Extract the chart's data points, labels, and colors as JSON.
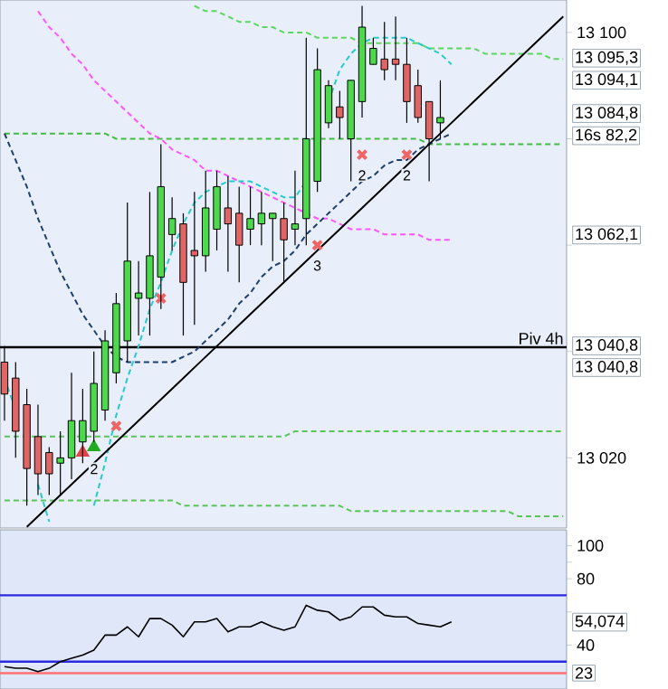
{
  "chart_data": [
    {
      "type": "candlestick",
      "categories": [
        null,
        null,
        null,
        null,
        null,
        null,
        null,
        null,
        null,
        null,
        null,
        null,
        null,
        null,
        null,
        null,
        null,
        null,
        null,
        null,
        null,
        null,
        null,
        null,
        null,
        null,
        null,
        null,
        null,
        null,
        null,
        null,
        null,
        null,
        null,
        null,
        null,
        null,
        null,
        null,
        null,
        null,
        null,
        null,
        null,
        null,
        null,
        null,
        null,
        null,
        null
      ],
      "ohlc": [
        [
          13038,
          13041,
          13027,
          13032
        ],
        [
          13035,
          13038,
          13020,
          13025
        ],
        [
          13030,
          13033,
          13011,
          13018
        ],
        [
          13024,
          13030,
          13013,
          13017
        ],
        [
          13021,
          13022,
          13013,
          13017
        ],
        [
          13019,
          13025,
          13013,
          13020
        ],
        [
          13020,
          13036,
          13016,
          13027
        ],
        [
          13023,
          13033,
          13019,
          13027
        ],
        [
          13025,
          13040,
          13023,
          13034
        ],
        [
          13029,
          13044,
          13027,
          13042
        ],
        [
          13036,
          13051,
          13034,
          13049
        ],
        [
          13042,
          13068,
          13038,
          13057
        ],
        [
          13050,
          13057,
          13043,
          13051
        ],
        [
          13050,
          13070,
          13043,
          13058
        ],
        [
          13054,
          13079,
          13048,
          13071
        ],
        [
          13062,
          13069,
          13059,
          13065
        ],
        [
          13064,
          13066,
          13043,
          13053
        ],
        [
          13059,
          13070,
          13045,
          13058
        ],
        [
          13058,
          13074,
          13055,
          13067
        ],
        [
          13063,
          13074,
          13059,
          13071
        ],
        [
          13067,
          13073,
          13055,
          13064
        ],
        [
          13066,
          13071,
          13053,
          13060
        ],
        [
          13063,
          13071,
          13060,
          13065
        ],
        [
          13064,
          13070,
          13060,
          13066
        ],
        [
          13065,
          13066,
          13057,
          13066
        ],
        [
          13065,
          13068,
          13053,
          13061
        ],
        [
          13063,
          13074,
          13060,
          13064
        ],
        [
          13065,
          13099,
          13060,
          13080
        ],
        [
          13072,
          13097,
          13070,
          13093
        ],
        [
          13083,
          13091,
          13082,
          13090
        ],
        [
          13086,
          13089,
          13080,
          13084
        ],
        [
          13080,
          13091,
          13072,
          13091
        ],
        [
          13087,
          13105,
          13084,
          13101
        ],
        [
          13094,
          13099,
          13094,
          13097
        ],
        [
          13095,
          13102,
          13091,
          13093
        ],
        [
          13095,
          13103,
          13091,
          13094
        ],
        [
          13094,
          13099,
          13083,
          13087
        ],
        [
          13090,
          13093,
          13083,
          13084
        ],
        [
          13087,
          13087,
          13072,
          13080
        ],
        [
          13083,
          13091,
          13080,
          13084
        ],
        null,
        null,
        null,
        null,
        null,
        null,
        null,
        null,
        null,
        null,
        null
      ],
      "colors": [
        "#e06666",
        "#e06666",
        "#e06666",
        "#e06666",
        "#e06666",
        "#4cd94c",
        "#4cd94c",
        "#4cd94c",
        "#4cd94c",
        "#4cd94c",
        "#4cd94c",
        "#4cd94c",
        "#4cd94c",
        "#4cd94c",
        "#4cd94c",
        "#4cd94c",
        "#e06666",
        "#e06666",
        "#4cd94c",
        "#4cd94c",
        "#e06666",
        "#e06666",
        "#4cd94c",
        "#4cd94c",
        "#4cd94c",
        "#e06666",
        "#4cd94c",
        "#4cd94c",
        "#4cd94c",
        "#4cd94c",
        "#e06666",
        "#4cd94c",
        "#4cd94c",
        "#4cd94c",
        "#e06666",
        "#e06666",
        "#e06666",
        "#e06666",
        "#e06666",
        "#4cd94c",
        null,
        null,
        null,
        null,
        null,
        null,
        null,
        null,
        null,
        null,
        null
      ],
      "series": [
        {
          "type": "line",
          "color": "#5cd65c",
          "line_style": "dashed",
          "values": [
            null,
            null,
            null,
            null,
            null,
            null,
            null,
            null,
            null,
            null,
            null,
            null,
            null,
            null,
            null,
            null,
            null,
            13105,
            13104,
            13104,
            13103,
            13102,
            13102,
            13101,
            13101,
            13100,
            13100,
            13100,
            13099,
            13099,
            13099,
            13099,
            13098,
            13098,
            13098,
            13098,
            13098,
            13098,
            13097,
            13097,
            13097,
            13097,
            13097,
            13096,
            13096,
            13096,
            13096,
            13096,
            13096,
            13095,
            13095
          ]
        },
        {
          "type": "line",
          "color": "#44bb44",
          "line_style": "dashed",
          "values": [
            13081,
            13081,
            13081,
            13081,
            13081,
            13081,
            13081,
            13081,
            13081,
            13081,
            13080,
            13080,
            13080,
            13080,
            13080,
            13080,
            13080,
            13080,
            13080,
            13080,
            13080,
            13080,
            13080,
            13080,
            13080,
            13080,
            13080,
            13080,
            13080,
            13080,
            13080,
            13080,
            13080,
            13080,
            13080,
            13080,
            13080,
            13080,
            13079,
            13079,
            13079,
            13079,
            13079,
            13079,
            13079,
            13079,
            13079,
            13079,
            13079,
            13079,
            13079
          ]
        },
        {
          "type": "line",
          "color": "#5cc45c",
          "line_style": "dashed",
          "values": [
            13024,
            13024,
            13024,
            13024,
            13024,
            13024,
            13024,
            13024,
            13024,
            13024,
            13024,
            13024,
            13024,
            13024,
            13024,
            13024,
            13024,
            13024,
            13024,
            13024,
            13024,
            13024,
            13024,
            13024,
            13024,
            13024,
            13025,
            13025,
            13025,
            13025,
            13025,
            13025,
            13025,
            13025,
            13025,
            13025,
            13025,
            13025,
            13025,
            13025,
            13025,
            13025,
            13025,
            13025,
            13025,
            13025,
            13025,
            13025,
            13025,
            13025,
            13025
          ]
        },
        {
          "type": "line",
          "color": "#5cc45c",
          "line_style": "dashed",
          "values": [
            13012,
            13012,
            13012,
            13012,
            13012,
            13012,
            13012,
            13012,
            13012,
            13012,
            13012,
            13012,
            13012,
            13012,
            13012,
            13012,
            13011,
            13011,
            13011,
            13011,
            13011,
            13011,
            13011,
            13011,
            13011,
            13011,
            13011,
            13011,
            13011,
            13011,
            13011,
            13010,
            13010,
            13010,
            13010,
            13010,
            13010,
            13010,
            13010,
            13010,
            13010,
            13010,
            13010,
            13010,
            13010,
            13010,
            13009,
            13009,
            13009,
            13009,
            13009
          ]
        },
        {
          "type": "line",
          "color": "#ff55ff",
          "line_style": "dashed",
          "values": [
            null,
            null,
            null,
            13104,
            13101,
            13099,
            13096,
            13094,
            13091,
            13089,
            13087,
            13085,
            13083,
            13081,
            13080,
            13078,
            13077,
            13076,
            13074,
            13074,
            13073,
            13072,
            13071,
            13070,
            13069,
            13068,
            13067,
            13066,
            13065,
            13065,
            13064,
            13063,
            13063,
            13063,
            13062,
            13062,
            13062,
            13062,
            13061,
            13061,
            13061,
            null,
            null,
            null,
            null,
            null,
            null,
            null,
            null,
            null,
            null
          ]
        },
        {
          "type": "line",
          "color": "#1e3f6b",
          "line_style": "dashed",
          "values": [
            13081,
            13076,
            13071,
            13065,
            13060,
            13055,
            13051,
            13047,
            13044,
            13041,
            13039,
            13038,
            13038,
            13038,
            13038,
            13038,
            13039,
            13040,
            13042,
            13044,
            13046,
            13049,
            13051,
            13054,
            13056,
            13057,
            13059,
            13062,
            13064,
            13066,
            13068,
            13070,
            13072,
            13073,
            13075,
            13076,
            13076,
            13078,
            13079,
            13080,
            13081,
            null,
            null,
            null,
            null,
            null,
            null,
            null,
            null,
            null,
            null
          ]
        },
        {
          "type": "line",
          "color": "#22cccc",
          "line_style": "dashed",
          "values": [
            13035,
            13029,
            null,
            13015,
            13008,
            null,
            null,
            null,
            13011,
            13019,
            13028,
            13035,
            13041,
            13048,
            13053,
            13059,
            13064,
            13068,
            13070,
            13071,
            13072,
            13072,
            13072,
            13071,
            13070,
            13069,
            13069,
            13072,
            null,
            13087,
            13093,
            13096,
            13098,
            13099,
            13099,
            13099,
            13099,
            13098,
            13097,
            13096,
            13094,
            null,
            null,
            null,
            null,
            null,
            null,
            null,
            null,
            null,
            null
          ]
        },
        {
          "type": "line",
          "color": "#000000",
          "line_style": "solid",
          "values": [
            null,
            null,
            13007,
            13009,
            13011,
            13013,
            13015,
            13017,
            13019,
            13021,
            13023,
            13025,
            13027,
            13029,
            13031,
            13033,
            13035,
            13037,
            13039,
            13041,
            13043,
            13045,
            13047,
            13049,
            13051,
            13053,
            13055,
            13057,
            13059,
            13061,
            13063,
            13065,
            13067,
            13069,
            13071,
            13073,
            13075,
            13077,
            13079,
            13081,
            13083,
            13085,
            13087,
            13089,
            13091,
            13093,
            13095,
            13097,
            13099,
            13101,
            13103
          ]
        },
        {
          "type": "scatter",
          "color": "#f06464",
          "marker": "cross",
          "values": [
            null,
            null,
            null,
            null,
            null,
            null,
            null,
            null,
            null,
            null,
            13026,
            null,
            null,
            null,
            13050,
            null,
            null,
            null,
            null,
            null,
            null,
            null,
            null,
            null,
            null,
            null,
            null,
            null,
            13060,
            null,
            null,
            null,
            13077,
            null,
            null,
            null,
            13077,
            null,
            null,
            null,
            null,
            null,
            null,
            null,
            null,
            null,
            null,
            null,
            null,
            null,
            null
          ]
        },
        {
          "type": "scatter",
          "color": "#e04444",
          "marker": "triangle",
          "values": [
            null,
            null,
            null,
            null,
            null,
            null,
            null,
            13021,
            null,
            null,
            null,
            null,
            null,
            null,
            null,
            null,
            null,
            null,
            null,
            null,
            null,
            null,
            null,
            null,
            null,
            null,
            null,
            null,
            null,
            null,
            null,
            null,
            null,
            null,
            null,
            null,
            null,
            null,
            null,
            null,
            null,
            null,
            null,
            null,
            null,
            null,
            null,
            null,
            null,
            null,
            null
          ]
        },
        {
          "type": "scatter",
          "color": "#22aa22",
          "marker": "triangle",
          "values": [
            null,
            null,
            null,
            null,
            null,
            null,
            null,
            null,
            13022,
            null,
            null,
            null,
            null,
            null,
            null,
            null,
            null,
            null,
            null,
            null,
            null,
            null,
            null,
            null,
            null,
            null,
            null,
            null,
            null,
            null,
            null,
            null,
            null,
            null,
            null,
            null,
            null,
            null,
            null,
            null,
            null,
            null,
            null,
            null,
            null,
            null,
            null,
            null,
            null,
            null,
            null
          ]
        }
      ],
      "ylim": [
        13006.8,
        13106.1
      ],
      "yticks": [
        {
          "value": 13100,
          "label": "13 100"
        },
        {
          "value": 13080,
          "label": null
        },
        {
          "value": 13060,
          "label": null
        },
        {
          "value": 13040,
          "label": null
        },
        {
          "value": 13020,
          "label": "13 020"
        }
      ],
      "ref_lines": [
        {
          "axis": "y",
          "value": 13040.8,
          "label": "Piv 4h",
          "color": "#000000",
          "line_style": "solid"
        }
      ],
      "annotations": [
        "13 095,3",
        "13 094,1",
        "13 084,8",
        "16s 82,2",
        "13 062,1",
        "13 040,8",
        "13 040,8",
        "3",
        "2",
        "2",
        "2"
      ],
      "tick_labels": "y"
    },
    {
      "type": "line",
      "categories": [
        null,
        null,
        null,
        null,
        null,
        null,
        null,
        null,
        null,
        null,
        null,
        null,
        null,
        null,
        null,
        null,
        null,
        null,
        null,
        null,
        null,
        null,
        null,
        null,
        null,
        null,
        null,
        null,
        null,
        null,
        null,
        null,
        null,
        null,
        null,
        null,
        null,
        null,
        null,
        null,
        null,
        null,
        null,
        null,
        null,
        null,
        null,
        null,
        null,
        null,
        null
      ],
      "series": [
        {
          "color": "#000000",
          "line_style": "solid",
          "values": [
            27,
            26,
            26,
            24,
            26,
            30,
            32,
            34,
            37,
            46,
            46,
            51,
            45,
            56,
            56,
            52,
            45,
            54,
            54,
            56,
            48,
            51,
            51,
            54,
            51,
            49,
            51,
            64,
            61,
            60,
            55,
            57,
            63,
            63,
            58,
            57,
            57,
            53,
            52,
            51,
            54,
            null,
            null,
            null,
            null,
            null,
            null,
            null,
            null,
            null,
            null
          ]
        }
      ],
      "ylim": [
        13.5,
        109.5
      ],
      "yticks": [
        100,
        {
          "value": 90,
          "label": null
        },
        80,
        {
          "value": 60,
          "label": null
        },
        40
      ],
      "ref_lines": [
        {
          "axis": "y",
          "value": 70,
          "color": "#2a2adf",
          "line_style": "solid"
        },
        {
          "axis": "y",
          "value": 30,
          "color": "#2a2adf",
          "line_style": "solid"
        },
        {
          "axis": "y",
          "value": 23,
          "color": "#ff7070",
          "line_style": "solid"
        }
      ],
      "annotations": [
        "54,074",
        "23"
      ],
      "tick_labels": "y"
    }
  ]
}
